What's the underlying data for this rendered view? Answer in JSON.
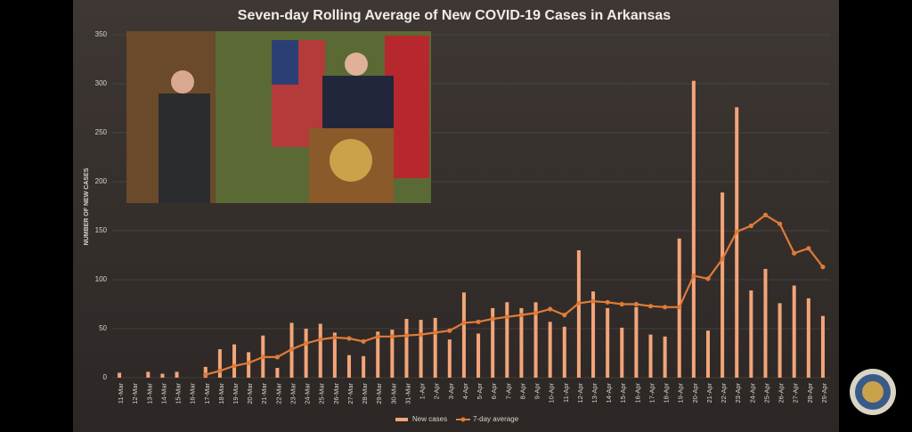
{
  "chart_data": {
    "type": "bar-line",
    "title": "Seven-day Rolling Average of New COVID-19 Cases in Arkansas",
    "y_label": "NUMBER OF NEW CASES",
    "categories": [
      "11-Mar",
      "12-Mar",
      "13-Mar",
      "14-Mar",
      "15-Mar",
      "16-Mar",
      "17-Mar",
      "18-Mar",
      "19-Mar",
      "20-Mar",
      "21-Mar",
      "22-Mar",
      "23-Mar",
      "24-Mar",
      "25-Mar",
      "26-Mar",
      "27-Mar",
      "28-Mar",
      "29-Mar",
      "30-Mar",
      "31-Mar",
      "1-Apr",
      "2-Apr",
      "3-Apr",
      "4-Apr",
      "5-Apr",
      "6-Apr",
      "7-Apr",
      "8-Apr",
      "9-Apr",
      "10-Apr",
      "11-Apr",
      "12-Apr",
      "13-Apr",
      "14-Apr",
      "15-Apr",
      "16-Apr",
      "17-Apr",
      "18-Apr",
      "19-Apr",
      "20-Apr",
      "21-Apr",
      "22-Apr",
      "23-Apr",
      "24-Apr",
      "25-Apr",
      "26-Apr",
      "27-Apr",
      "28-Apr",
      "29-Apr"
    ],
    "series": [
      {
        "name": "New cases",
        "type": "bar",
        "color": "#f2a579",
        "values": [
          5,
          0,
          6,
          4,
          6,
          0,
          11,
          29,
          34,
          26,
          43,
          10,
          56,
          50,
          55,
          46,
          23,
          22,
          47,
          49,
          60,
          59,
          61,
          39,
          87,
          45,
          71,
          77,
          71,
          77,
          57,
          52,
          130,
          88,
          71,
          51,
          72,
          44,
          42,
          142,
          303,
          48,
          189,
          276,
          89,
          111,
          76,
          94,
          81,
          63
        ]
      },
      {
        "name": "7-day average",
        "type": "line",
        "color": "#e07b39",
        "values": [
          null,
          null,
          null,
          null,
          null,
          null,
          3,
          7,
          12,
          15,
          21,
          21,
          29,
          35,
          39,
          41,
          40,
          37,
          42,
          42,
          43,
          44,
          46,
          48,
          56,
          57,
          60,
          62,
          64,
          66,
          70,
          64,
          76,
          78,
          77,
          75,
          75,
          73,
          72,
          72,
          104,
          101,
          121,
          149,
          155,
          166,
          157,
          127,
          132,
          113
        ]
      }
    ],
    "ylim": [
      0,
      350
    ],
    "yticks": [
      0,
      50,
      100,
      150,
      200,
      250,
      300,
      350
    ],
    "grid": true,
    "legend": "bottom"
  }
}
